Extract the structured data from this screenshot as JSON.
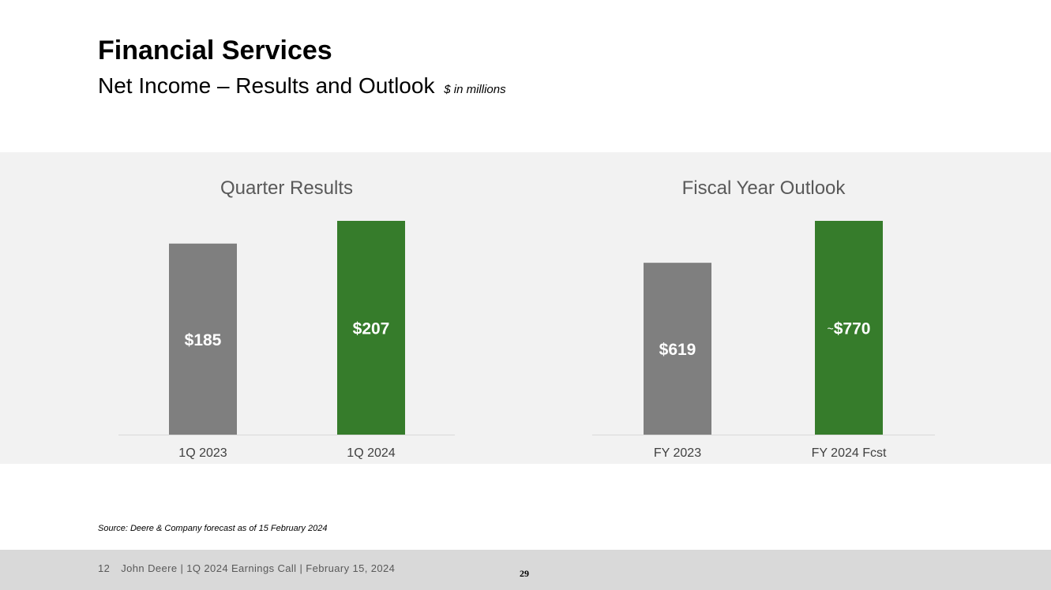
{
  "header": {
    "title": "Financial Services",
    "subtitle": "Net Income – Results and Outlook",
    "units": "$ in millions"
  },
  "chart_data": [
    {
      "type": "bar",
      "title": "Quarter Results",
      "categories": [
        "1Q 2023",
        "1Q 2024"
      ],
      "values": [
        185,
        207
      ],
      "labels": [
        "$185",
        "$207"
      ],
      "prefixes": [
        "",
        ""
      ],
      "colors": [
        "#7f7f7f",
        "#367c2b"
      ],
      "ylim": [
        0,
        207
      ]
    },
    {
      "type": "bar",
      "title": "Fiscal Year Outlook",
      "categories": [
        "FY 2023",
        "FY 2024 Fcst"
      ],
      "values": [
        619,
        770
      ],
      "labels": [
        "$619",
        "$770"
      ],
      "prefixes": [
        "",
        "~"
      ],
      "colors": [
        "#7f7f7f",
        "#367c2b"
      ],
      "ylim": [
        0,
        770
      ]
    }
  ],
  "source": "Source: Deere & Company forecast as of 15 February 2024",
  "footer": {
    "page": "12",
    "text": "John Deere | 1Q 2024 Earnings Call | February 15, 2024",
    "number": "29"
  }
}
